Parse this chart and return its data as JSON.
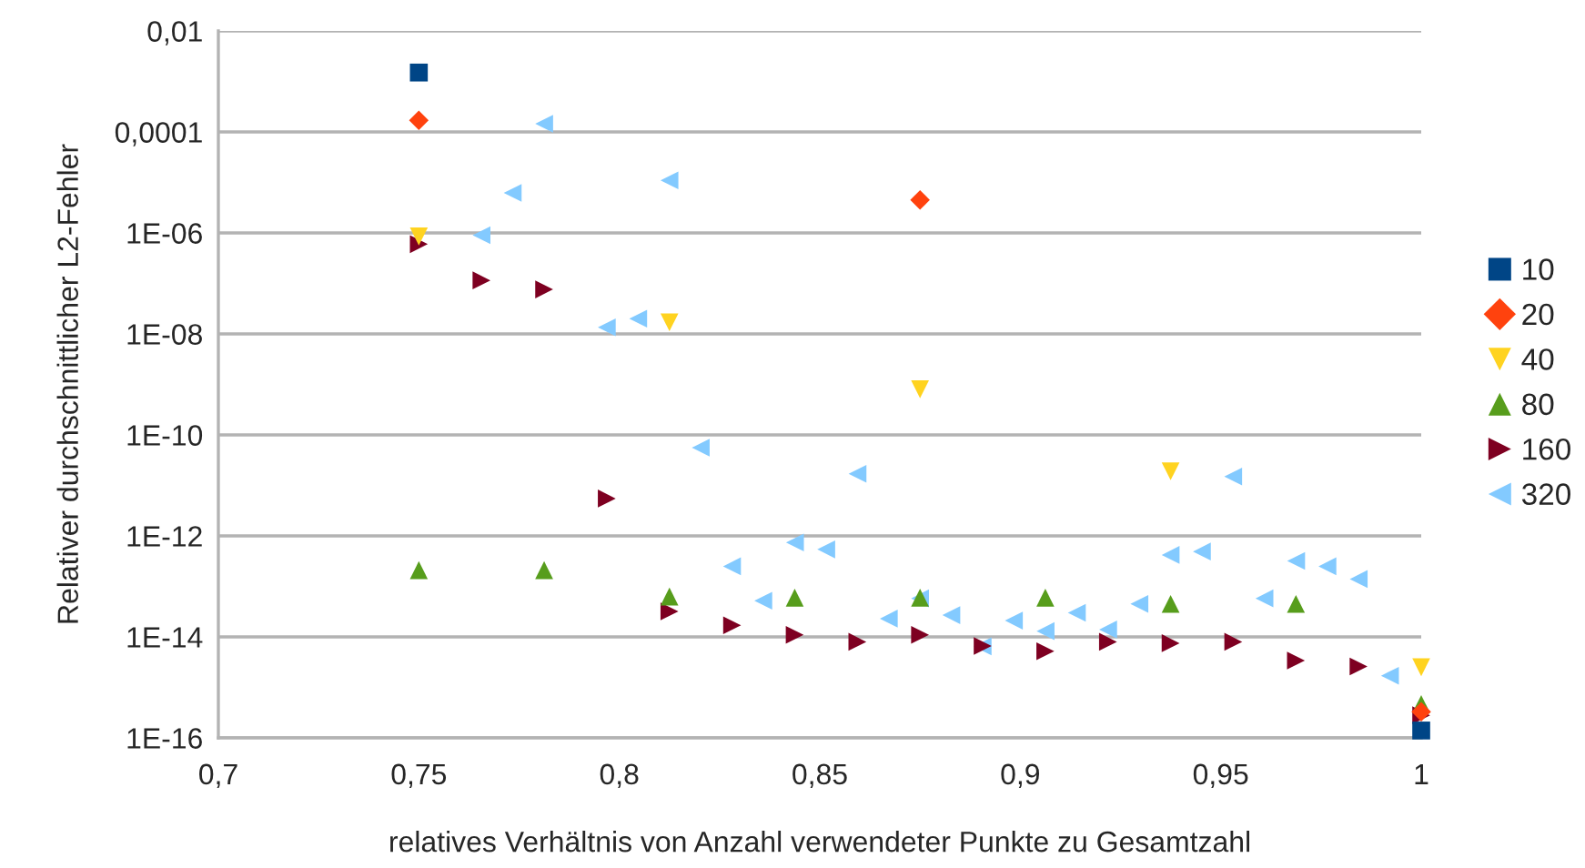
{
  "chart_data": {
    "type": "scatter",
    "xlabel": "relatives Verhältnis von Anzahl verwendeter Punkte zu Gesamtzahl",
    "ylabel": "Relativer durchschnittlicher L2-Fehler",
    "log": "y",
    "grid": "y",
    "legend": "right",
    "xlim": [
      0.7,
      1
    ],
    "xticks": [
      {
        "value": 0.7,
        "label": "0,7"
      },
      {
        "value": 0.75,
        "label": "0,75"
      },
      {
        "value": 0.8,
        "label": "0,8"
      },
      {
        "value": 0.85,
        "label": "0,85"
      },
      {
        "value": 0.9,
        "label": "0,9"
      },
      {
        "value": 0.95,
        "label": "0,95"
      },
      1
    ],
    "ylim": [
      1e-16,
      0.01
    ],
    "yticks": [
      {
        "value": 0.01,
        "label": "0,01"
      },
      {
        "value": 0.0001,
        "label": "0,0001"
      },
      {
        "value": 1e-06,
        "label": "1E-06"
      },
      {
        "value": 1e-08,
        "label": "1E-08"
      },
      {
        "value": 1e-10,
        "label": "1E-10"
      },
      {
        "value": 1e-12,
        "label": "1E-12"
      },
      {
        "value": 1e-14,
        "label": "1E-14"
      },
      {
        "value": 1e-16,
        "label": "1E-16"
      }
    ],
    "series": [
      {
        "name": "10",
        "color": "#004586",
        "marker": "square",
        "x": [
          0.75,
          1
        ],
        "values": [
          0.0015,
          1.4e-16
        ]
      },
      {
        "name": "20",
        "color": "#ff420e",
        "marker": "diamond",
        "x": [
          0.75,
          0.875,
          1
        ],
        "values": [
          0.00017,
          4.5e-06,
          3.3e-16
        ]
      },
      {
        "name": "40",
        "color": "#ffd320",
        "marker": "triangle-down",
        "x": [
          0.75,
          0.8125,
          0.875,
          0.9375,
          1
        ],
        "values": [
          8.5e-07,
          1.7e-08,
          8e-10,
          1.9e-11,
          2.5e-15
        ]
      },
      {
        "name": "80",
        "color": "#579d1c",
        "marker": "triangle",
        "x": [
          0.75,
          0.78125,
          0.8125,
          0.84375,
          0.875,
          0.90625,
          0.9375,
          0.96875,
          1
        ],
        "values": [
          2.1e-13,
          2.1e-13,
          6.3e-14,
          6e-14,
          6e-14,
          6e-14,
          4.5e-14,
          4.5e-14,
          4.7e-16
        ]
      },
      {
        "name": "160",
        "color": "#7e0021",
        "marker": "triangle-right",
        "x": [
          0.75,
          0.765625,
          0.78125,
          0.796875,
          0.8125,
          0.828125,
          0.84375,
          0.859375,
          0.875,
          0.890625,
          0.90625,
          0.921875,
          0.9375,
          0.953125,
          0.96875,
          0.984375,
          1
        ],
        "values": [
          6e-07,
          1.15e-07,
          7.6e-08,
          5.5e-12,
          3.2e-14,
          1.7e-14,
          1.1e-14,
          8e-15,
          1.1e-14,
          6.6e-15,
          5.2e-15,
          8e-15,
          7.5e-15,
          8e-15,
          3.4e-15,
          2.6e-15,
          2.8e-16
        ]
      },
      {
        "name": "320",
        "color": "#83caff",
        "marker": "triangle-left",
        "x": [
          0.765625,
          0.7734,
          0.78125,
          0.796875,
          0.8047,
          0.8125,
          0.8203,
          0.8281,
          0.8359,
          0.8438,
          0.8516,
          0.8594,
          0.8672,
          0.875,
          0.8828,
          0.8906,
          0.8984,
          0.9063,
          0.9141,
          0.9219,
          0.9297,
          0.9375,
          0.9453,
          0.9531,
          0.9609,
          0.9688,
          0.9766,
          0.9844,
          0.9922
        ],
        "values": [
          9e-07,
          6.2e-06,
          0.000145,
          1.35e-08,
          2e-08,
          1.1e-05,
          5.6e-11,
          2.5e-13,
          5.2e-14,
          7.4e-13,
          5.4e-13,
          1.7e-11,
          2.3e-14,
          5.8e-14,
          2.7e-14,
          6.5e-15,
          2.1e-14,
          1.3e-14,
          3e-14,
          1.4e-14,
          4.5e-14,
          4.2e-13,
          4.9e-13,
          1.5e-11,
          5.8e-14,
          3.2e-13,
          2.5e-13,
          1.4e-13,
          1.7e-15
        ]
      }
    ]
  }
}
